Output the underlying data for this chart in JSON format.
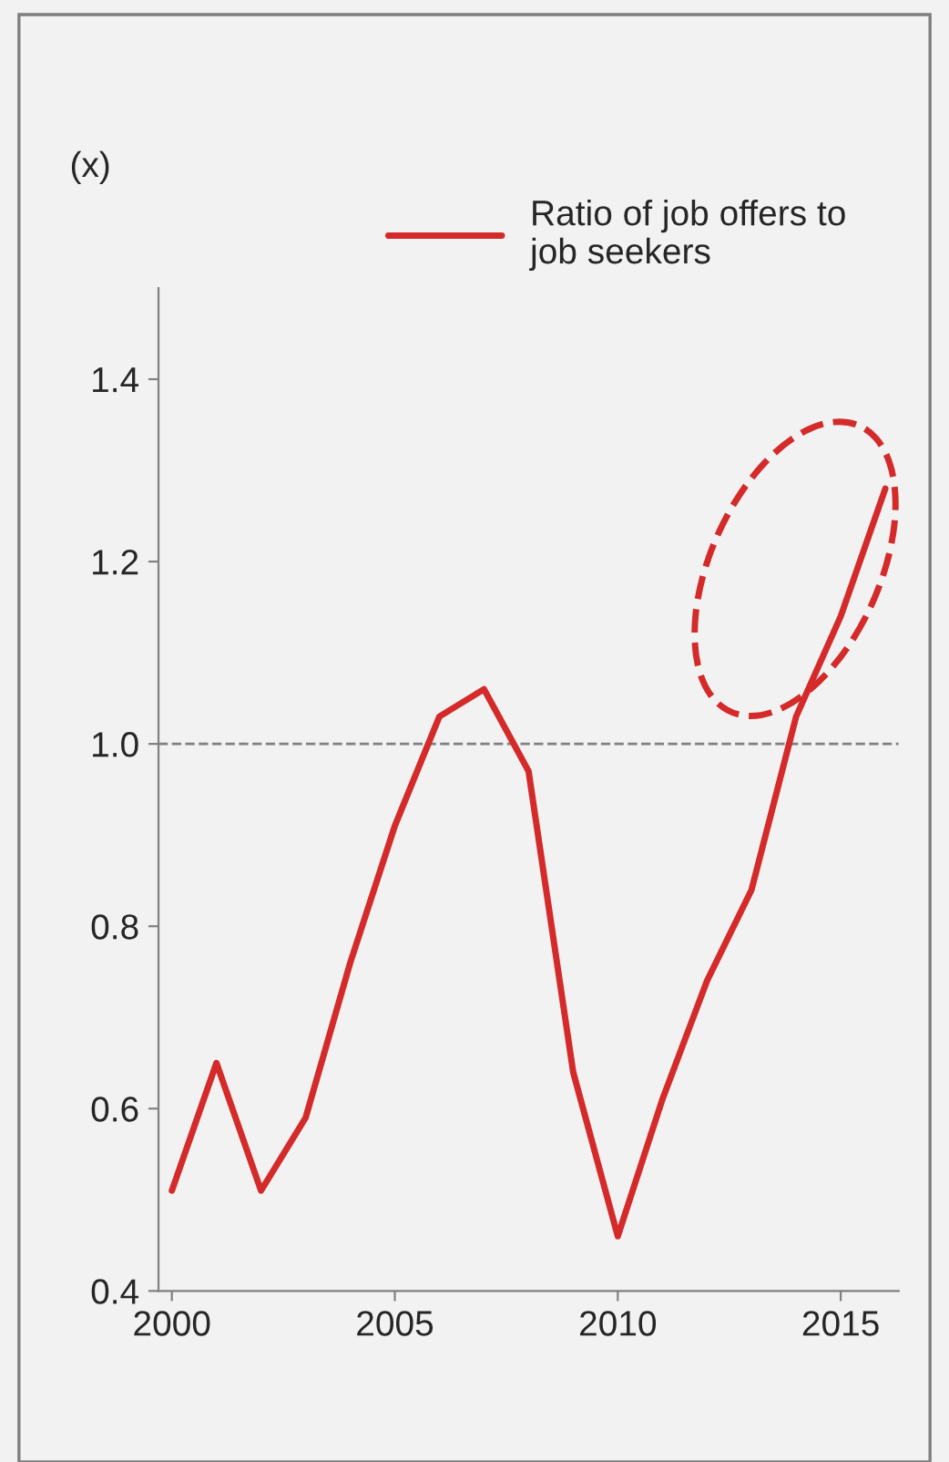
{
  "chart_data": {
    "type": "line",
    "ylabel": "(x)",
    "x": [
      2000,
      2001,
      2002,
      2003,
      2004,
      2005,
      2006,
      2007,
      2008,
      2009,
      2010,
      2011,
      2012,
      2013,
      2014,
      2015,
      2016
    ],
    "series": [
      {
        "name": "Ratio of job offers to job seekers",
        "color": "#d42a2a",
        "values": [
          0.51,
          0.65,
          0.51,
          0.59,
          0.76,
          0.91,
          1.03,
          1.06,
          0.97,
          0.64,
          0.46,
          0.61,
          0.74,
          0.84,
          1.03,
          1.14,
          1.28
        ]
      }
    ],
    "xlim": [
      1999.7,
      2016.3
    ],
    "xticks": [
      2000,
      2005,
      2010,
      2015
    ],
    "ylim": [
      0.4,
      1.5
    ],
    "yticks": [
      {
        "value": 0.4,
        "label": "0.4"
      },
      {
        "value": 0.6,
        "label": "0.6"
      },
      {
        "value": 0.8,
        "label": "0.8"
      },
      {
        "value": 1.0,
        "label": "1.0"
      },
      {
        "value": 1.2,
        "label": "1.2"
      },
      {
        "value": 1.4,
        "label": "1.4"
      }
    ],
    "ref_lines": [
      {
        "axis": "y",
        "value": 1.0,
        "color": "#808080",
        "line_style": "dashed"
      }
    ],
    "legend": "top",
    "grid": false,
    "marker": "none",
    "line_style": "solid"
  }
}
